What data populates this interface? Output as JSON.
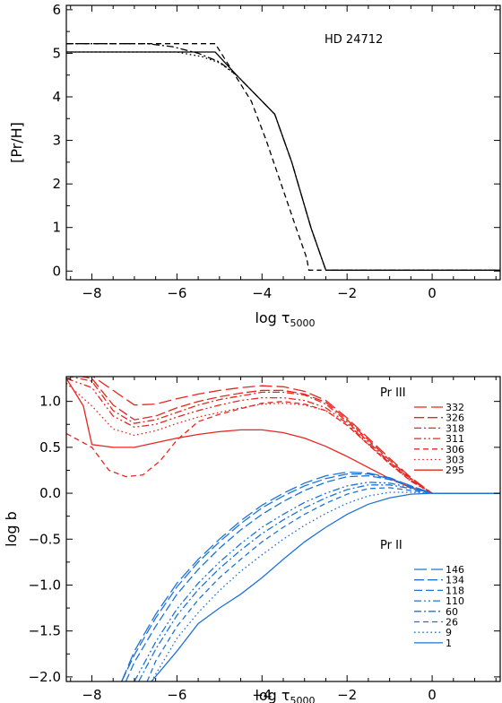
{
  "chart_data": [
    {
      "type": "line",
      "title": "",
      "annotation": "HD 24712",
      "xlabel": "log τ",
      "xlabel_sub": "5000",
      "ylabel": "[Pr/H]",
      "xlim": [
        -8.6,
        1.6
      ],
      "ylim": [
        -0.2,
        6.1
      ],
      "xticks": [
        -8,
        -6,
        -4,
        -2,
        0
      ],
      "yticks": [
        0,
        1,
        2,
        3,
        4,
        5,
        6
      ],
      "xtick_labels": [
        "−8",
        "−6",
        "−4",
        "−2",
        "0"
      ],
      "ytick_labels": [
        "0",
        "1",
        "2",
        "3",
        "4",
        "5",
        "6"
      ],
      "series": [
        {
          "style": "solid",
          "color": "#000000",
          "x": [
            -8.6,
            -5.1,
            -4.6,
            -4.2,
            -3.7,
            -3.3,
            -2.85,
            -2.6,
            -2.5,
            1.6
          ],
          "y": [
            5.03,
            5.03,
            4.5,
            4.1,
            3.6,
            2.5,
            1.0,
            0.3,
            0.02,
            0.02
          ]
        },
        {
          "style": "dash",
          "color": "#000000",
          "x": [
            -8.6,
            -5.1,
            -4.7,
            -4.25,
            -3.9,
            -3.55,
            -3.2,
            -2.95,
            -2.9,
            -2.6
          ],
          "y": [
            5.22,
            5.22,
            4.6,
            3.9,
            3.0,
            2.0,
            1.0,
            0.3,
            0.02,
            0.02
          ]
        },
        {
          "style": "dashdot",
          "color": "#000000",
          "x": [
            -8.6,
            -6.7,
            -6.1,
            -5.5,
            -5.0,
            -4.6,
            -4.2,
            -3.7,
            -3.3,
            -2.85,
            -2.6,
            -2.5,
            1.6
          ],
          "y": [
            5.22,
            5.22,
            5.15,
            5.0,
            4.8,
            4.5,
            4.1,
            3.6,
            2.5,
            1.0,
            0.3,
            0.02,
            0.02
          ]
        },
        {
          "style": "dot",
          "color": "#000000",
          "x": [
            -8.6,
            -6.0,
            -5.4,
            -5.0,
            -4.6
          ],
          "y": [
            5.03,
            5.03,
            4.92,
            4.78,
            4.5
          ]
        }
      ]
    },
    {
      "type": "line",
      "title": "",
      "xlabel": "log τ",
      "xlabel_sub": "5000",
      "ylabel": "log b",
      "xlim": [
        -8.6,
        1.6
      ],
      "ylim": [
        -2.05,
        1.27
      ],
      "xticks": [
        -8,
        -6,
        -4,
        -2,
        0
      ],
      "yticks": [
        -2.0,
        -1.5,
        -1.0,
        -0.5,
        0.0,
        0.5,
        1.0
      ],
      "xtick_labels": [
        "−8",
        "−6",
        "−4",
        "−2",
        "0"
      ],
      "ytick_labels": [
        "−2.0",
        "−1.5",
        "−1.0",
        "−0.5",
        "0.0",
        "0.5",
        "1.0"
      ],
      "groups": [
        {
          "label": "Pr III",
          "color": "#e8261f",
          "series": [
            {
              "name": "332",
              "style": "longdash",
              "x": [
                -8.6,
                -8.0,
                -7.5,
                -7.0,
                -6.5,
                -6.0,
                -5.5,
                -5.0,
                -4.5,
                -4.0,
                -3.5,
                -3.0,
                -2.5,
                -2.0,
                -1.5,
                -1.0,
                -0.5,
                0.0,
                0.5,
                1.6
              ],
              "y": [
                1.32,
                1.28,
                1.12,
                0.96,
                0.97,
                1.03,
                1.08,
                1.12,
                1.15,
                1.17,
                1.16,
                1.11,
                1.01,
                0.82,
                0.6,
                0.38,
                0.17,
                0.0,
                0.0,
                0.0
              ]
            },
            {
              "name": "326",
              "style": "longdash2",
              "x": [
                -8.6,
                -8.0,
                -7.5,
                -7.0,
                -6.5,
                -6.0,
                -5.5,
                -5.0,
                -4.5,
                -4.0,
                -3.5,
                -3.0,
                -2.5,
                -2.0,
                -1.5,
                -1.0,
                -0.5,
                0.0,
                0.5,
                1.6
              ],
              "y": [
                1.3,
                1.25,
                0.96,
                0.8,
                0.84,
                0.93,
                1.0,
                1.05,
                1.09,
                1.12,
                1.12,
                1.08,
                0.99,
                0.8,
                0.58,
                0.36,
                0.16,
                0.0,
                0.0,
                0.0
              ]
            },
            {
              "name": "318",
              "style": "dashdot",
              "x": [
                -8.6,
                -8.0,
                -7.5,
                -7.0,
                -6.5,
                -6.0,
                -5.5,
                -5.0,
                -4.5,
                -4.0,
                -3.5,
                -3.0,
                -2.5,
                -2.0,
                -1.5,
                -1.0,
                -0.5,
                0.0,
                0.5,
                1.6
              ],
              "y": [
                1.28,
                1.22,
                0.9,
                0.76,
                0.8,
                0.88,
                0.96,
                1.02,
                1.06,
                1.1,
                1.1,
                1.07,
                0.97,
                0.78,
                0.56,
                0.34,
                0.15,
                0.0,
                0.0,
                0.0
              ]
            },
            {
              "name": "311",
              "style": "dashdotdot",
              "x": [
                -8.6,
                -8.0,
                -7.5,
                -7.0,
                -6.5,
                -6.0,
                -5.5,
                -5.0,
                -4.5,
                -4.0,
                -3.5,
                -3.0,
                -2.5,
                -2.0,
                -1.5,
                -1.0,
                -0.5,
                0.0,
                0.5,
                1.6
              ],
              "y": [
                1.25,
                1.15,
                0.84,
                0.72,
                0.75,
                0.83,
                0.9,
                0.96,
                1.01,
                1.04,
                1.04,
                1.01,
                0.93,
                0.76,
                0.54,
                0.33,
                0.14,
                0.0,
                0.0,
                0.0
              ]
            },
            {
              "name": "306",
              "style": "dash",
              "x": [
                -8.6,
                -8.0,
                -7.6,
                -7.2,
                -6.8,
                -6.4,
                -6.0,
                -5.5,
                -5.0,
                -4.5,
                -4.0,
                -3.5,
                -3.0,
                -2.5,
                -2.0,
                -1.5,
                -1.0,
                -0.5,
                0.0,
                0.5,
                1.6
              ],
              "y": [
                0.65,
                0.5,
                0.25,
                0.18,
                0.2,
                0.35,
                0.58,
                0.78,
                0.86,
                0.92,
                0.98,
                1.0,
                0.97,
                0.9,
                0.74,
                0.53,
                0.32,
                0.13,
                0.0,
                0.0,
                0.0
              ]
            },
            {
              "name": "303",
              "style": "dot",
              "x": [
                -8.6,
                -8.0,
                -7.5,
                -7.0,
                -6.5,
                -6.0,
                -5.5,
                -5.0,
                -4.5,
                -4.0,
                -3.5,
                -3.0,
                -2.5,
                -2.0,
                -1.5,
                -1.0,
                -0.5,
                0.0,
                0.5,
                1.6
              ],
              "y": [
                1.2,
                0.95,
                0.7,
                0.63,
                0.68,
                0.76,
                0.83,
                0.88,
                0.93,
                0.97,
                0.98,
                0.96,
                0.9,
                0.74,
                0.53,
                0.32,
                0.13,
                0.0,
                0.0,
                0.0
              ]
            },
            {
              "name": "295",
              "style": "solid",
              "x": [
                -8.6,
                -8.2,
                -8.0,
                -7.5,
                -7.0,
                -6.5,
                -6.0,
                -5.5,
                -5.0,
                -4.5,
                -4.0,
                -3.5,
                -3.0,
                -2.5,
                -2.0,
                -1.5,
                -1.0,
                -0.5,
                0.0,
                0.5,
                1.6
              ],
              "y": [
                1.25,
                0.95,
                0.53,
                0.5,
                0.5,
                0.55,
                0.6,
                0.64,
                0.67,
                0.69,
                0.69,
                0.66,
                0.6,
                0.51,
                0.4,
                0.28,
                0.16,
                0.06,
                0.0,
                0.0,
                0.0
              ]
            }
          ]
        },
        {
          "label": "Pr II",
          "color": "#1e73d8",
          "series": [
            {
              "name": "146",
              "style": "longdash",
              "x": [
                -7.3,
                -7.0,
                -6.5,
                -6.0,
                -5.5,
                -5.0,
                -4.5,
                -4.0,
                -3.5,
                -3.0,
                -2.5,
                -2.0,
                -1.5,
                -1.0,
                -0.5,
                0.0,
                0.5,
                1.6
              ],
              "y": [
                -2.05,
                -1.72,
                -1.32,
                -0.98,
                -0.72,
                -0.5,
                -0.3,
                -0.13,
                0.0,
                0.11,
                0.19,
                0.23,
                0.22,
                0.17,
                0.08,
                0.0,
                0.0,
                0.0
              ]
            },
            {
              "name": "134",
              "style": "longdash2",
              "x": [
                -7.3,
                -7.0,
                -6.5,
                -6.0,
                -5.5,
                -5.0,
                -4.5,
                -4.0,
                -3.5,
                -3.0,
                -2.5,
                -2.0,
                -1.5,
                -1.0,
                -0.5,
                0.0,
                0.5,
                1.6
              ],
              "y": [
                -2.05,
                -1.76,
                -1.36,
                -1.02,
                -0.75,
                -0.53,
                -0.33,
                -0.16,
                -0.03,
                0.08,
                0.16,
                0.21,
                0.21,
                0.16,
                0.08,
                0.0,
                0.0,
                0.0
              ]
            },
            {
              "name": "118",
              "style": "longdash3",
              "x": [
                -7.2,
                -7.0,
                -6.5,
                -6.0,
                -5.5,
                -5.0,
                -4.5,
                -4.0,
                -3.5,
                -3.0,
                -2.5,
                -2.0,
                -1.5,
                -1.0,
                -0.5,
                0.0,
                0.5,
                1.6
              ],
              "y": [
                -2.05,
                -1.84,
                -1.45,
                -1.1,
                -0.83,
                -0.6,
                -0.4,
                -0.23,
                -0.09,
                0.03,
                0.12,
                0.18,
                0.19,
                0.15,
                0.07,
                0.0,
                0.0,
                0.0
              ]
            },
            {
              "name": "110",
              "style": "dashdotdot",
              "x": [
                -7.0,
                -6.5,
                -6.0,
                -5.5,
                -5.0,
                -4.5,
                -4.0,
                -3.5,
                -3.0,
                -2.5,
                -2.0,
                -1.5,
                -1.0,
                -0.5,
                0.0,
                0.5,
                1.6
              ],
              "y": [
                -2.05,
                -1.62,
                -1.26,
                -0.98,
                -0.75,
                -0.55,
                -0.37,
                -0.23,
                -0.1,
                0.0,
                0.08,
                0.12,
                0.11,
                0.06,
                0.0,
                0.0,
                0.0
              ]
            },
            {
              "name": "60",
              "style": "dashdot",
              "x": [
                -6.9,
                -6.5,
                -6.0,
                -5.5,
                -5.0,
                -4.5,
                -4.0,
                -3.5,
                -3.0,
                -2.5,
                -2.0,
                -1.5,
                -1.0,
                -0.5,
                0.0,
                0.5,
                1.6
              ],
              "y": [
                -2.05,
                -1.7,
                -1.33,
                -1.05,
                -0.82,
                -0.62,
                -0.44,
                -0.29,
                -0.16,
                -0.05,
                0.04,
                0.09,
                0.09,
                0.05,
                0.0,
                0.0,
                0.0
              ]
            },
            {
              "name": "26",
              "style": "dash",
              "x": [
                -6.7,
                -6.5,
                -6.0,
                -5.5,
                -5.0,
                -4.5,
                -4.0,
                -3.5,
                -3.0,
                -2.5,
                -2.0,
                -1.5,
                -1.0,
                -0.5,
                0.0,
                0.5,
                1.6
              ],
              "y": [
                -2.05,
                -1.83,
                -1.45,
                -1.16,
                -0.92,
                -0.72,
                -0.53,
                -0.37,
                -0.23,
                -0.11,
                -0.01,
                0.05,
                0.06,
                0.03,
                0.0,
                0.0,
                0.0
              ]
            },
            {
              "name": "9",
              "style": "dot",
              "x": [
                -6.6,
                -6.0,
                -5.5,
                -5.0,
                -4.5,
                -4.0,
                -3.5,
                -3.0,
                -2.5,
                -2.0,
                -1.5,
                -1.0,
                -0.5,
                0.0,
                0.5,
                1.6
              ],
              "y": [
                -2.05,
                -1.58,
                -1.3,
                -1.06,
                -0.85,
                -0.67,
                -0.5,
                -0.35,
                -0.22,
                -0.11,
                -0.03,
                0.01,
                0.01,
                0.0,
                0.0,
                0.0
              ]
            },
            {
              "name": "1",
              "style": "solid",
              "x": [
                -6.6,
                -6.0,
                -5.5,
                -5.0,
                -4.5,
                -4.0,
                -3.5,
                -3.0,
                -2.5,
                -2.0,
                -1.5,
                -1.0,
                -0.5,
                0.0,
                0.5,
                1.6
              ],
              "y": [
                -2.05,
                -1.72,
                -1.42,
                -1.25,
                -1.1,
                -0.92,
                -0.72,
                -0.53,
                -0.37,
                -0.23,
                -0.12,
                -0.05,
                -0.01,
                0.0,
                0.0,
                0.0
              ]
            }
          ]
        }
      ]
    }
  ]
}
